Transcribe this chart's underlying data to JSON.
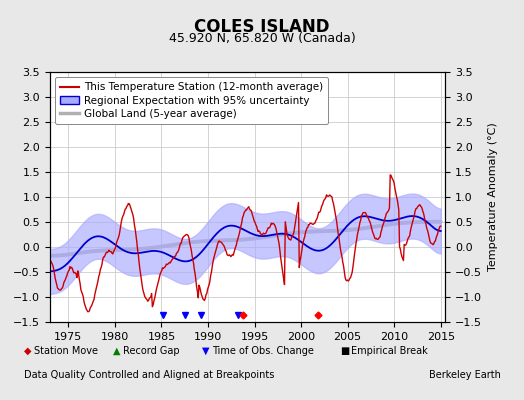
{
  "title": "COLES ISLAND",
  "subtitle": "45.920 N, 65.820 W (Canada)",
  "ylabel": "Temperature Anomaly (°C)",
  "xlabel_note": "Data Quality Controlled and Aligned at Breakpoints",
  "credit": "Berkeley Earth",
  "xlim": [
    1973,
    2015.5
  ],
  "ylim": [
    -1.5,
    3.5
  ],
  "yticks": [
    -1.5,
    -1.0,
    -0.5,
    0.0,
    0.5,
    1.0,
    1.5,
    2.0,
    2.5,
    3.0,
    3.5
  ],
  "xticks": [
    1975,
    1980,
    1985,
    1990,
    1995,
    2000,
    2005,
    2010,
    2015
  ],
  "legend_entries": [
    "This Temperature Station (12-month average)",
    "Regional Expectation with 95% uncertainty",
    "Global Land (5-year average)"
  ],
  "station_color": "#cc0000",
  "regional_color": "#0000cc",
  "regional_fill_color": "#aaaaff",
  "global_color": "#b0b0b0",
  "background_color": "#e8e8e8",
  "plot_bg_color": "#ffffff",
  "grid_color": "#cccccc",
  "title_fontsize": 12,
  "subtitle_fontsize": 9,
  "legend_fontsize": 7.5,
  "tick_fontsize": 8,
  "note_fontsize": 7,
  "credit_fontsize": 7
}
